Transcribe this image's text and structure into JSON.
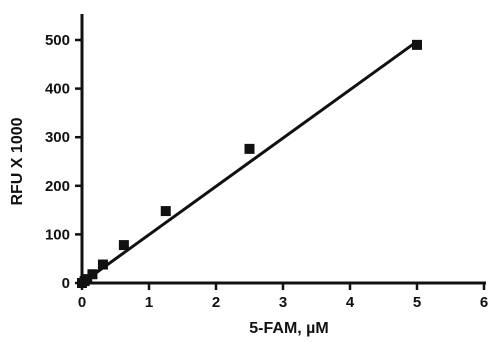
{
  "chart_data": {
    "type": "scatter",
    "title": "",
    "xlabel": "5-FAM, µM",
    "ylabel": "RFU X 1000",
    "xlim": [
      0,
      6
    ],
    "ylim": [
      0,
      500
    ],
    "x_ticks": [
      0,
      1,
      2,
      3,
      4,
      5,
      6
    ],
    "y_ticks": [
      0,
      100,
      200,
      300,
      400,
      500
    ],
    "grid": false,
    "legend": "none",
    "marker": "square",
    "series": [
      {
        "x": [
          0,
          0.039,
          0.078,
          0.156,
          0.3125,
          0.625,
          1.25,
          2.5,
          5
        ],
        "y": [
          0,
          4,
          8,
          18,
          38,
          78,
          148,
          276,
          490
        ]
      }
    ],
    "fit_line": {
      "x": [
        0,
        5
      ],
      "y": [
        0,
        497
      ]
    },
    "colors": {
      "ink": "#111111",
      "background": "#ffffff"
    }
  }
}
